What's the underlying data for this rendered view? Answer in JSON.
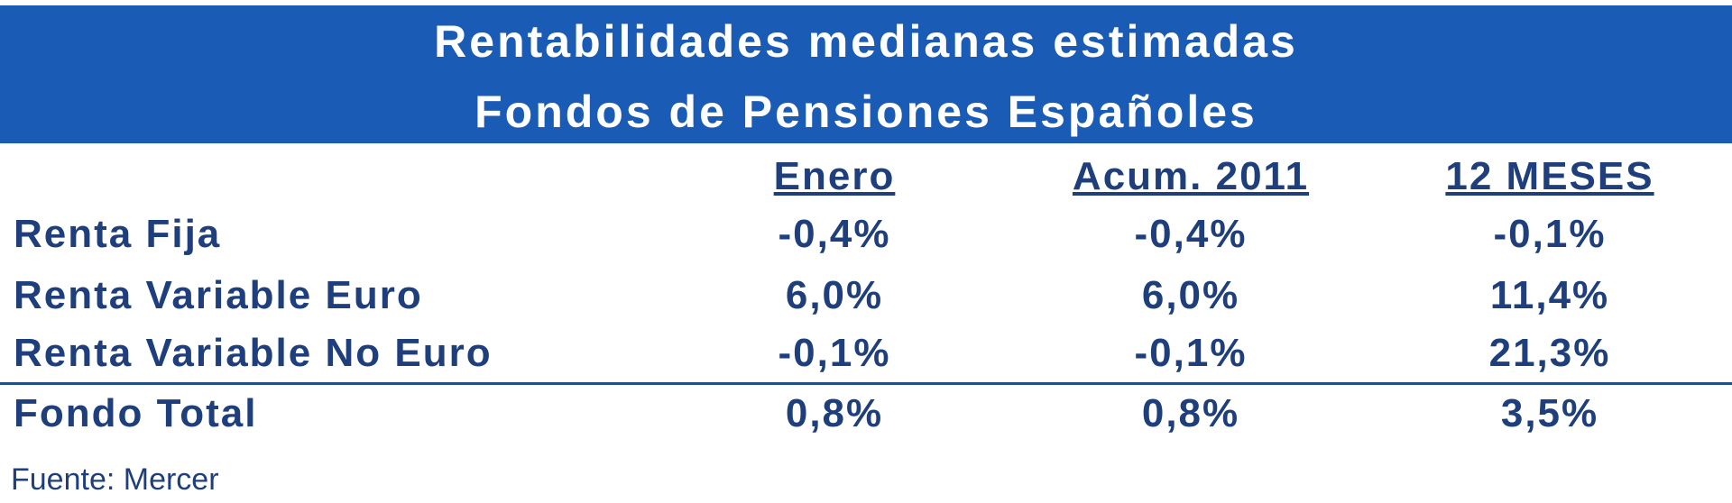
{
  "header": {
    "title": [
      "Rentabilidades medianas estimadas",
      "Fondos de Pensiones Españoles"
    ]
  },
  "table": {
    "columns": [
      "Enero",
      "Acum. 2011",
      "12 MESES"
    ],
    "rows": [
      {
        "label": "Renta Fija",
        "values": [
          "-0,4%",
          "-0,4%",
          "-0,1%"
        ]
      },
      {
        "label": "Renta Variable Euro",
        "values": [
          "6,0%",
          "6,0%",
          "11,4%"
        ]
      },
      {
        "label": "Renta Variable No Euro",
        "values": [
          "-0,1%",
          "-0,1%",
          "21,3%"
        ]
      },
      {
        "label": "Fondo Total",
        "values": [
          "0,8%",
          "0,8%",
          "3,5%"
        ]
      }
    ]
  },
  "footer": {
    "source": "Fuente: Mercer"
  }
}
